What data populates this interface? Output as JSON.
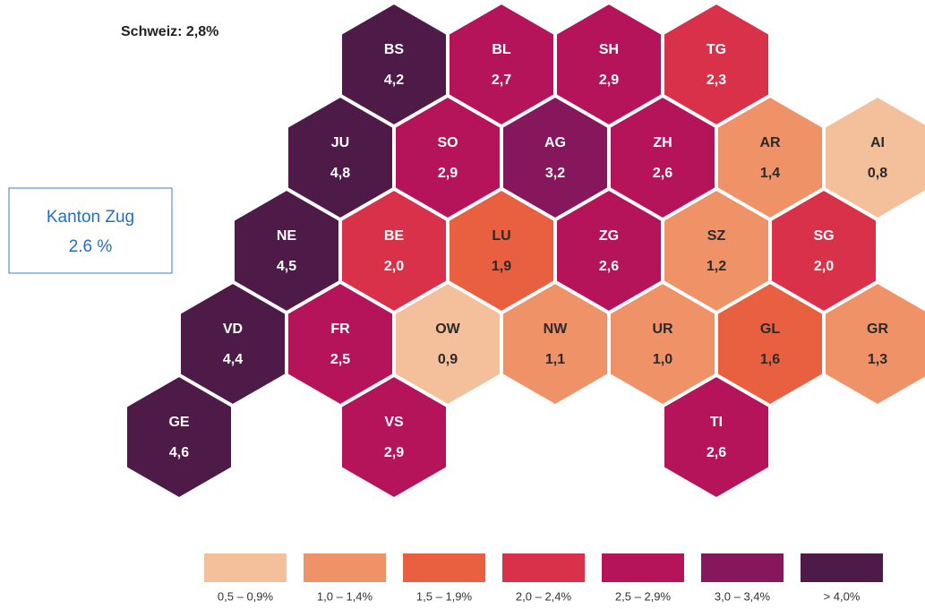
{
  "title": "Schweiz: 2,8%",
  "note_box": {
    "line1": "Kanton Zug",
    "line2": "2.6 %"
  },
  "cells": [
    {
      "code": "BS",
      "value": "4,2",
      "color": "#4e1a47",
      "row": 0,
      "col": 0
    },
    {
      "code": "BL",
      "value": "2,7",
      "color": "#b5135a",
      "row": 0,
      "col": 1
    },
    {
      "code": "SH",
      "value": "2,9",
      "color": "#b5135a",
      "row": 0,
      "col": 2
    },
    {
      "code": "TG",
      "value": "2,3",
      "color": "#d9314a",
      "row": 0,
      "col": 3
    },
    {
      "code": "JU",
      "value": "4,8",
      "color": "#4e1a47",
      "row": 1,
      "col": 0
    },
    {
      "code": "SO",
      "value": "2,9",
      "color": "#b5135a",
      "row": 1,
      "col": 1
    },
    {
      "code": "AG",
      "value": "3,2",
      "color": "#86175c",
      "row": 1,
      "col": 2
    },
    {
      "code": "ZH",
      "value": "2,6",
      "color": "#b5135a",
      "row": 1,
      "col": 3
    },
    {
      "code": "AR",
      "value": "1,4",
      "color": "#ef9268",
      "row": 1,
      "col": 4
    },
    {
      "code": "AI",
      "value": "0,8",
      "color": "#f4bf9b",
      "row": 1,
      "col": 5
    },
    {
      "code": "NE",
      "value": "4,5",
      "color": "#4e1a47",
      "row": 2,
      "col": 0
    },
    {
      "code": "BE",
      "value": "2,0",
      "color": "#d9314a",
      "row": 2,
      "col": 1
    },
    {
      "code": "LU",
      "value": "1,9",
      "color": "#e8603f",
      "row": 2,
      "col": 2
    },
    {
      "code": "ZG",
      "value": "2,6",
      "color": "#b5135a",
      "row": 2,
      "col": 3
    },
    {
      "code": "SZ",
      "value": "1,2",
      "color": "#ef9268",
      "row": 2,
      "col": 4
    },
    {
      "code": "SG",
      "value": "2,0",
      "color": "#d9314a",
      "row": 2,
      "col": 5
    },
    {
      "code": "VD",
      "value": "4,4",
      "color": "#4e1a47",
      "row": 3,
      "col": 0
    },
    {
      "code": "FR",
      "value": "2,5",
      "color": "#b5135a",
      "row": 3,
      "col": 1
    },
    {
      "code": "OW",
      "value": "0,9",
      "color": "#f4bf9b",
      "row": 3,
      "col": 2
    },
    {
      "code": "NW",
      "value": "1,1",
      "color": "#ef9268",
      "row": 3,
      "col": 3
    },
    {
      "code": "UR",
      "value": "1,0",
      "color": "#ef9268",
      "row": 3,
      "col": 4
    },
    {
      "code": "GL",
      "value": "1,6",
      "color": "#e8603f",
      "row": 3,
      "col": 5
    },
    {
      "code": "GR",
      "value": "1,3",
      "color": "#ef9268",
      "row": 3,
      "col": 6
    },
    {
      "code": "GE",
      "value": "4,6",
      "color": "#4e1a47",
      "row": 4,
      "col": 0
    },
    {
      "code": "VS",
      "value": "2,9",
      "color": "#b5135a",
      "row": 4,
      "col": 2
    },
    {
      "code": "TI",
      "value": "2,6",
      "color": "#b5135a",
      "row": 4,
      "col": 5
    }
  ],
  "legend": [
    {
      "label": "0,5 – 0,9%",
      "color": "#f4bf9b"
    },
    {
      "label": "1,0 – 1,4%",
      "color": "#ef9268"
    },
    {
      "label": "1,5 – 1,9%",
      "color": "#e8603f"
    },
    {
      "label": "2,0 – 2,4%",
      "color": "#d9314a"
    },
    {
      "label": "2,5 – 2,9%",
      "color": "#b5135a"
    },
    {
      "label": "3,0 – 3,4%",
      "color": "#86175c"
    },
    {
      "label": "> 4,0%",
      "color": "#4e1a47"
    }
  ]
}
